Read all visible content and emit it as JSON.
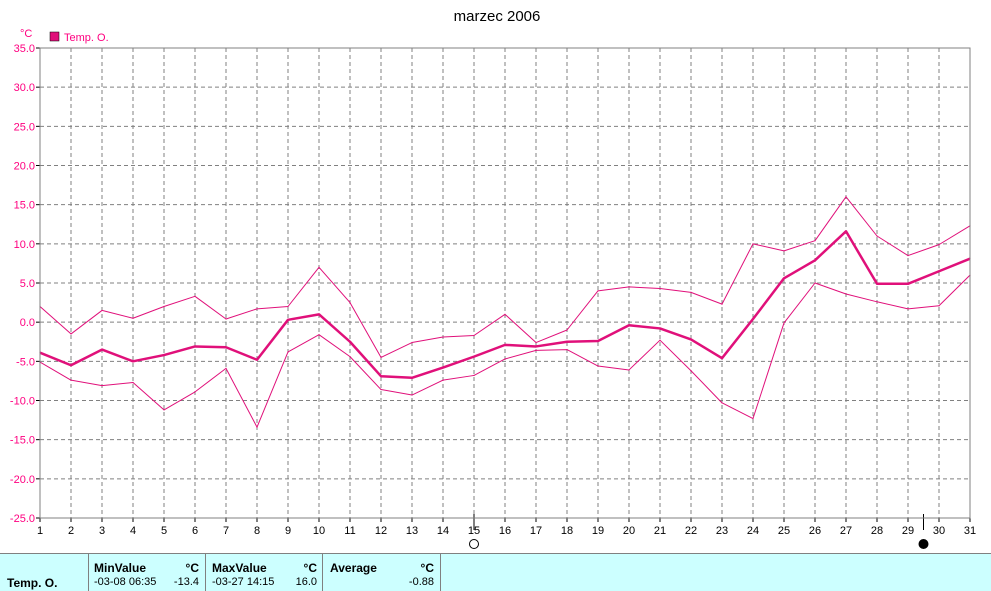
{
  "chart_data": {
    "type": "line",
    "title": "marzec 2006",
    "y_unit": "°C",
    "legend": "Temp. O.",
    "legend_position": "top-left",
    "grid": true,
    "ylim": [
      -25,
      35
    ],
    "y_ticks": [
      "35.0",
      "30.0",
      "25.0",
      "20.0",
      "15.0",
      "10.0",
      "5.0",
      "0.0",
      "-5.0",
      "-10.0",
      "-15.0",
      "-20.0",
      "-25.0"
    ],
    "x": [
      1,
      2,
      3,
      4,
      5,
      6,
      7,
      8,
      9,
      10,
      11,
      12,
      13,
      14,
      15,
      16,
      17,
      18,
      19,
      20,
      21,
      22,
      23,
      24,
      25,
      26,
      27,
      28,
      29,
      30,
      31
    ],
    "series": [
      {
        "role": "max",
        "color": "#e0107a",
        "values": [
          2.0,
          -1.5,
          1.5,
          0.5,
          2.0,
          3.3,
          0.4,
          1.7,
          2.0,
          7.0,
          2.5,
          -4.5,
          -2.6,
          -1.9,
          -1.7,
          1.0,
          -2.6,
          -1.0,
          4.0,
          4.5,
          4.3,
          3.8,
          2.3,
          10.0,
          9.1,
          10.4,
          16.0,
          11.0,
          8.5,
          9.9,
          12.3
        ]
      },
      {
        "role": "avg",
        "color": "#e0107a",
        "values": [
          -3.9,
          -5.5,
          -3.5,
          -5.0,
          -4.2,
          -3.1,
          -3.2,
          -4.8,
          0.3,
          1.0,
          -2.5,
          -6.9,
          -7.1,
          -5.8,
          -4.4,
          -2.9,
          -3.1,
          -2.5,
          -2.4,
          -0.4,
          -0.8,
          -2.2,
          -4.6,
          0.4,
          5.6,
          7.9,
          11.6,
          4.9,
          4.9,
          6.5,
          8.1
        ]
      },
      {
        "role": "min",
        "color": "#e0107a",
        "values": [
          -5.1,
          -7.4,
          -8.1,
          -7.7,
          -11.2,
          -8.9,
          -5.9,
          -13.4,
          -3.8,
          -1.6,
          -4.4,
          -8.6,
          -9.3,
          -7.4,
          -6.8,
          -4.7,
          -3.6,
          -3.5,
          -5.6,
          -6.1,
          -2.3,
          -6.2,
          -10.3,
          -12.3,
          -0.1,
          5.0,
          3.6,
          2.6,
          1.7,
          2.1,
          6.0
        ]
      }
    ],
    "markers": [
      {
        "x": 15,
        "symbol": "open-circle"
      },
      {
        "x": 29.5,
        "symbol": "filled-circle"
      }
    ]
  },
  "stats": {
    "series_label": "Temp. O.",
    "min": {
      "header": "MinValue",
      "unit": "°C",
      "time": "-03-08  06:35",
      "value": "-13.4"
    },
    "max": {
      "header": "MaxValue",
      "unit": "°C",
      "time": "-03-27  14:15",
      "value": "16.0"
    },
    "avg": {
      "header": "Average",
      "unit": "°C",
      "value": "-0.88"
    }
  }
}
